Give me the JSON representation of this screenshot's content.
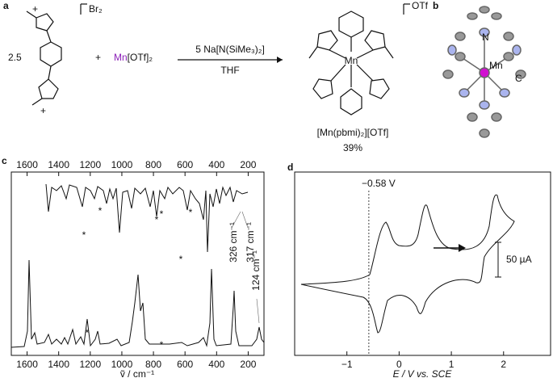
{
  "panels": {
    "a": {
      "label": "a",
      "reagent_counterion": "Br₂",
      "reagent_charge_top": "+",
      "reagent_charge_bottom": "+",
      "equiv": "2.5",
      "plus": "+",
      "metal": "Mn",
      "metal_salt": "[OTf]₂",
      "conditions": "5 Na[N(SiMe₃)₂]",
      "solvent": "THF",
      "product_counterion": "OTf",
      "product_metal": "Mn",
      "product_name": "[Mn(pbmi)₂][OTf]",
      "yield": "39%"
    },
    "b": {
      "label": "b",
      "atom_n": "N",
      "atom_mn": "Mn",
      "atom_c": "C"
    },
    "c": {
      "label": "c",
      "type": "line",
      "xlim": [
        1700,
        100
      ],
      "xticks": [
        1600,
        1400,
        1200,
        1000,
        800,
        600,
        400,
        200
      ],
      "x_label": "ṽ / cm⁻¹",
      "annotations": [
        "*",
        "*",
        "*",
        "*",
        "*",
        "*",
        "*",
        "*",
        "326 cm⁻¹",
        "317 cm⁻¹",
        "124 cm⁻¹"
      ]
    },
    "d": {
      "label": "d",
      "type": "line",
      "xlim": [
        -2,
        2.9
      ],
      "xticks": [
        {
          "value": -1,
          "label": "−1"
        },
        0,
        1,
        2
      ],
      "x_label": "E / V vs. SCE",
      "marker": "−0.58 V",
      "marker_value": -0.58,
      "scale_bar": "50 µA"
    }
  }
}
